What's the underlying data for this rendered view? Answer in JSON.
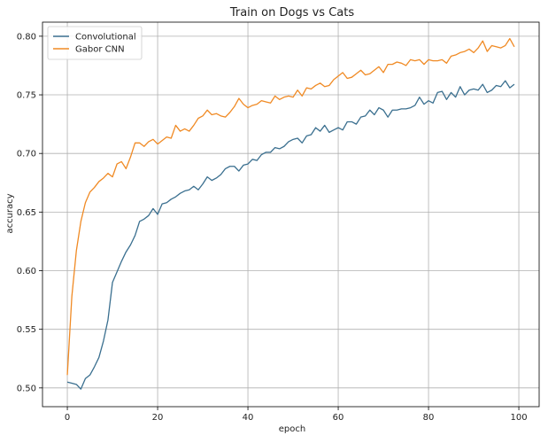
{
  "chart_data": {
    "type": "line",
    "title": "Train on Dogs vs Cats",
    "xlabel": "epoch",
    "ylabel": "accuracy",
    "xlim": [
      -5.5,
      104.5
    ],
    "ylim": [
      0.484,
      0.812
    ],
    "xticks": [
      0,
      20,
      40,
      60,
      80,
      100
    ],
    "yticks": [
      0.5,
      0.55,
      0.6,
      0.65,
      0.7,
      0.75,
      0.8
    ],
    "ytick_labels": [
      "0.50",
      "0.55",
      "0.60",
      "0.65",
      "0.70",
      "0.75",
      "0.80"
    ],
    "grid": true,
    "legend": "upper-left",
    "x": [
      0,
      1,
      2,
      3,
      4,
      5,
      6,
      7,
      8,
      9,
      10,
      11,
      12,
      13,
      14,
      15,
      16,
      17,
      18,
      19,
      20,
      21,
      22,
      23,
      24,
      25,
      26,
      27,
      28,
      29,
      30,
      31,
      32,
      33,
      34,
      35,
      36,
      37,
      38,
      39,
      40,
      41,
      42,
      43,
      44,
      45,
      46,
      47,
      48,
      49,
      50,
      51,
      52,
      53,
      54,
      55,
      56,
      57,
      58,
      59,
      60,
      61,
      62,
      63,
      64,
      65,
      66,
      67,
      68,
      69,
      70,
      71,
      72,
      73,
      74,
      75,
      76,
      77,
      78,
      79,
      80,
      81,
      82,
      83,
      84,
      85,
      86,
      87,
      88,
      89,
      90,
      91,
      92,
      93,
      94,
      95,
      96,
      97,
      98,
      99
    ],
    "series": [
      {
        "name": "Convolutional",
        "color": "#3a6f8f",
        "values": [
          0.505,
          0.504,
          0.503,
          0.499,
          0.508,
          0.511,
          0.518,
          0.526,
          0.54,
          0.558,
          0.59,
          0.599,
          0.608,
          0.616,
          0.622,
          0.63,
          0.642,
          0.644,
          0.647,
          0.653,
          0.648,
          0.657,
          0.658,
          0.661,
          0.663,
          0.666,
          0.668,
          0.669,
          0.672,
          0.669,
          0.674,
          0.68,
          0.677,
          0.679,
          0.682,
          0.687,
          0.689,
          0.689,
          0.685,
          0.69,
          0.691,
          0.695,
          0.694,
          0.699,
          0.701,
          0.701,
          0.705,
          0.704,
          0.706,
          0.71,
          0.712,
          0.713,
          0.709,
          0.715,
          0.716,
          0.722,
          0.719,
          0.724,
          0.718,
          0.72,
          0.722,
          0.72,
          0.727,
          0.727,
          0.725,
          0.731,
          0.732,
          0.737,
          0.733,
          0.739,
          0.737,
          0.731,
          0.737,
          0.737,
          0.738,
          0.738,
          0.739,
          0.741,
          0.748,
          0.742,
          0.745,
          0.743,
          0.752,
          0.753,
          0.746,
          0.752,
          0.748,
          0.757,
          0.75,
          0.754,
          0.755,
          0.754,
          0.759,
          0.752,
          0.754,
          0.758,
          0.757,
          0.762,
          0.756,
          0.759
        ]
      },
      {
        "name": "Gabor CNN",
        "color": "#f08a24",
        "values": [
          0.511,
          0.578,
          0.617,
          0.642,
          0.658,
          0.667,
          0.671,
          0.676,
          0.679,
          0.683,
          0.68,
          0.691,
          0.693,
          0.687,
          0.697,
          0.709,
          0.709,
          0.706,
          0.71,
          0.712,
          0.708,
          0.711,
          0.714,
          0.713,
          0.724,
          0.719,
          0.721,
          0.719,
          0.724,
          0.73,
          0.732,
          0.737,
          0.733,
          0.734,
          0.732,
          0.731,
          0.735,
          0.74,
          0.747,
          0.742,
          0.739,
          0.741,
          0.742,
          0.745,
          0.744,
          0.743,
          0.749,
          0.746,
          0.748,
          0.749,
          0.748,
          0.754,
          0.749,
          0.756,
          0.755,
          0.758,
          0.76,
          0.757,
          0.758,
          0.763,
          0.766,
          0.769,
          0.764,
          0.765,
          0.768,
          0.771,
          0.767,
          0.768,
          0.771,
          0.774,
          0.769,
          0.776,
          0.776,
          0.778,
          0.777,
          0.775,
          0.78,
          0.779,
          0.78,
          0.776,
          0.78,
          0.779,
          0.779,
          0.78,
          0.777,
          0.783,
          0.784,
          0.786,
          0.787,
          0.789,
          0.786,
          0.79,
          0.796,
          0.787,
          0.792,
          0.791,
          0.79,
          0.792,
          0.798,
          0.791
        ]
      }
    ]
  }
}
